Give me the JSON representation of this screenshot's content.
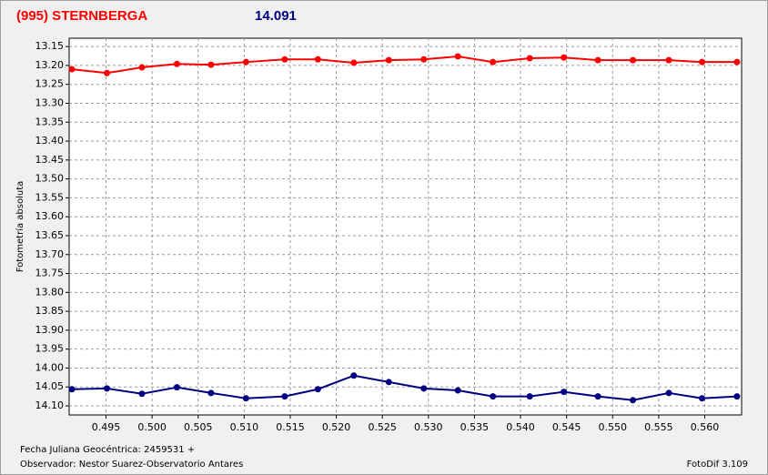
{
  "chart_data": {
    "type": "line",
    "title": "(995) STERNBERGA",
    "title_color": "#ff0000",
    "subtitle": "14.091",
    "subtitle_color": "#000080",
    "y_label": "Fotometría absoluta",
    "footer_left": [
      "Fecha Juliana Geocéntrica: 2459531 +",
      "Observador: Nestor Suarez-Observatorio Antares"
    ],
    "footer_right": "FotoDif 3.109",
    "x": [
      0.4913,
      0.4951,
      0.4989,
      0.5027,
      0.5064,
      0.5102,
      0.5144,
      0.518,
      0.5219,
      0.5257,
      0.5295,
      0.5332,
      0.537,
      0.541,
      0.5447,
      0.5484,
      0.5522,
      0.5561,
      0.5597,
      0.5635
    ],
    "series": [
      {
        "color": "#ff0000",
        "values": [
          13.21,
          13.22,
          13.205,
          13.196,
          13.198,
          13.191,
          13.184,
          13.184,
          13.193,
          13.186,
          13.184,
          13.176,
          13.191,
          13.181,
          13.179,
          13.186,
          13.186,
          13.186,
          13.191,
          13.191
        ]
      },
      {
        "color": "#000080",
        "values": [
          14.056,
          14.054,
          14.068,
          14.051,
          14.066,
          14.08,
          14.075,
          14.056,
          14.02,
          14.037,
          14.054,
          14.059,
          14.075,
          14.075,
          14.063,
          14.075,
          14.085,
          14.066,
          14.08,
          14.075
        ]
      }
    ],
    "xlim": [
      0.491,
      0.564
    ],
    "ylim": [
      13.128,
      14.124
    ],
    "y_inverted": true,
    "grid": true,
    "xticks": [
      0.495,
      {
        "value": 0.5,
        "label": "0.500"
      },
      0.505,
      {
        "value": 0.51,
        "label": "0.510"
      },
      0.515,
      {
        "value": 0.52,
        "label": "0.520"
      },
      0.525,
      {
        "value": 0.53,
        "label": "0.530"
      },
      0.535,
      {
        "value": 0.54,
        "label": "0.540"
      },
      0.545,
      {
        "value": 0.55,
        "label": "0.550"
      },
      0.555,
      {
        "value": 0.56,
        "label": "0.560"
      }
    ],
    "yticks": [
      13.15,
      {
        "value": 13.2,
        "label": "13.20"
      },
      13.25,
      {
        "value": 13.3,
        "label": "13.30"
      },
      13.35,
      {
        "value": 13.4,
        "label": "13.40"
      },
      13.45,
      {
        "value": 13.5,
        "label": "13.50"
      },
      13.55,
      {
        "value": 13.6,
        "label": "13.60"
      },
      13.65,
      {
        "value": 13.7,
        "label": "13.70"
      },
      13.75,
      {
        "value": 13.8,
        "label": "13.80"
      },
      13.85,
      {
        "value": 13.9,
        "label": "13.90"
      },
      13.95,
      {
        "value": 14,
        "label": "14.00"
      },
      14.05,
      {
        "value": 14.1,
        "label": "14.10"
      }
    ]
  }
}
